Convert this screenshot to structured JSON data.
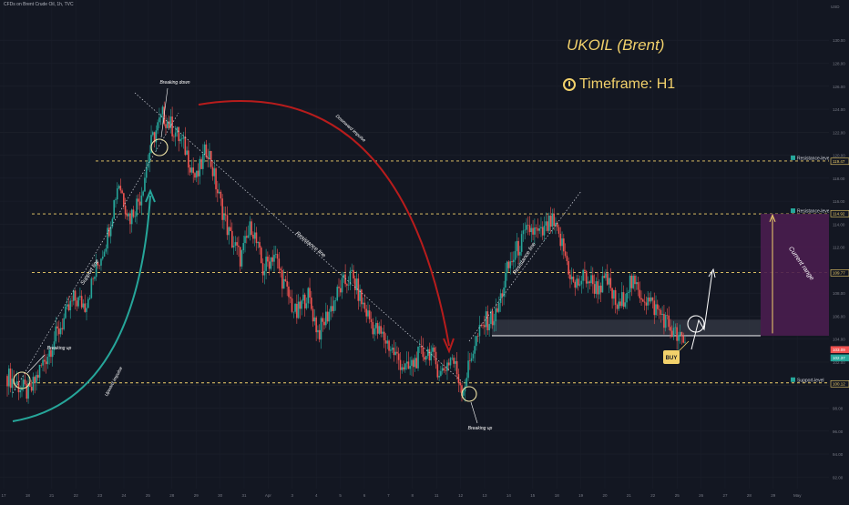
{
  "header": {
    "symbol_text": "CFDs on Brent Crude Oil, 1h, TVC"
  },
  "title": "UKOIL (Brent)",
  "timeframe": "Timeframe: H1",
  "top_right_label": "USD",
  "colors": {
    "background": "#131722",
    "candle_up": "#26a69a",
    "candle_down": "#ef5350",
    "level_line": "#f2d16b",
    "downward_arrow": "#b71c1c",
    "upward_arrow": "#26a69a",
    "range_box": "#4a1d4f",
    "annotation": "#ffffff"
  },
  "chart_data": {
    "type": "candlestick",
    "instrument": "CFDs on Brent Crude Oil",
    "interval": "1h",
    "ylim": [
      91.0,
      133.5
    ],
    "y_ticks": [
      "130.00",
      "128.00",
      "126.00",
      "124.00",
      "122.00",
      "120.00",
      "118.00",
      "116.00",
      "114.00",
      "112.00",
      "110.00",
      "108.00",
      "106.00",
      "104.00",
      "102.00",
      "100.00",
      "98.00",
      "96.00",
      "94.00",
      "92.00"
    ],
    "x_ticks": [
      "17",
      "18",
      "21",
      "22",
      "23",
      "24",
      "25",
      "28",
      "29",
      "30",
      "31",
      "Apr",
      "3",
      "4",
      "5",
      "6",
      "7",
      "8",
      "11",
      "12",
      "13",
      "14",
      "15",
      "18",
      "19",
      "20",
      "21",
      "22",
      "25",
      "26",
      "27",
      "28",
      "29",
      "May"
    ],
    "price_path": [
      [
        0,
        100.8
      ],
      [
        2,
        99.2
      ],
      [
        3,
        101.5
      ],
      [
        4,
        103.5
      ],
      [
        6,
        107.5
      ],
      [
        7,
        107.0
      ],
      [
        9,
        113.0
      ],
      [
        10,
        117.8
      ],
      [
        11,
        114.5
      ],
      [
        12,
        116.5
      ],
      [
        13,
        121.2
      ],
      [
        14,
        123.5
      ],
      [
        15,
        122.2
      ],
      [
        16,
        120.6
      ],
      [
        17,
        117.8
      ],
      [
        18,
        120.8
      ],
      [
        19,
        116.5
      ],
      [
        20,
        113.0
      ],
      [
        21,
        111.0
      ],
      [
        22,
        114.0
      ],
      [
        23,
        110.0
      ],
      [
        24,
        111.5
      ],
      [
        25,
        108.5
      ],
      [
        26,
        106.0
      ],
      [
        27,
        108.0
      ],
      [
        28,
        104.5
      ],
      [
        29,
        106.5
      ],
      [
        30,
        108.5
      ],
      [
        31,
        109.5
      ],
      [
        32,
        107.0
      ],
      [
        33,
        105.0
      ],
      [
        34,
        104.0
      ],
      [
        35,
        102.5
      ],
      [
        36,
        101.2
      ],
      [
        37,
        102.5
      ],
      [
        38,
        103.0
      ],
      [
        39,
        101.0
      ],
      [
        40,
        102.5
      ],
      [
        41,
        99.5
      ],
      [
        42,
        103.5
      ],
      [
        43,
        105.5
      ],
      [
        44,
        106.0
      ],
      [
        45,
        110.0
      ],
      [
        46,
        112.0
      ],
      [
        47,
        113.6
      ],
      [
        48,
        113.0
      ],
      [
        49,
        114.2
      ],
      [
        50,
        112.0
      ],
      [
        51,
        108.5
      ],
      [
        52,
        109.5
      ],
      [
        53,
        108.5
      ],
      [
        54,
        109.0
      ],
      [
        55,
        106.5
      ],
      [
        56,
        109.0
      ],
      [
        57,
        108.0
      ],
      [
        58,
        107.0
      ],
      [
        59,
        106.0
      ],
      [
        60,
        104.5
      ],
      [
        61,
        103.5
      ]
    ],
    "levels": [
      {
        "name": "Resistance-level",
        "value": 119.5
      },
      {
        "name": "Resistance-level",
        "value": 114.9
      },
      {
        "name": "Resistance-level",
        "value": 109.8
      },
      {
        "name": "Support-level",
        "value": 100.2
      }
    ],
    "price_tags": [
      "119.47",
      "114.92",
      "109.77",
      "103.09",
      "102.37",
      "100.12"
    ],
    "annotations": [
      "Breaking down",
      "Breaking up",
      "Breaking up",
      "Support line",
      "Resistance line",
      "Resistance line",
      "Upward impulse",
      "Downward impulse",
      "Current range",
      "BUY"
    ]
  }
}
